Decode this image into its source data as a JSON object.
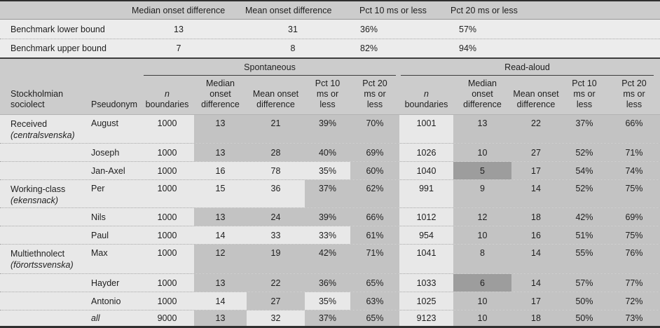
{
  "colors": {
    "header_gray": "#cccccc",
    "benchmark_row": "#ececec",
    "cell_light": "#e8e8e8",
    "cell_medium": "#c3c3c3",
    "cell_dark": "#9d9d9d"
  },
  "benchmark": {
    "headers": [
      "Median onset difference",
      "Mean onset difference",
      "Pct 10 ms or less",
      "Pct 20 ms or less"
    ],
    "rows": [
      {
        "label": "Benchmark lower bound",
        "median": "13",
        "mean": "31",
        "pct10": "36%",
        "pct20": "57%"
      },
      {
        "label": "Benchmark upper bound",
        "median": "7",
        "mean": "8",
        "pct10": "82%",
        "pct20": "94%"
      }
    ]
  },
  "main": {
    "groups": [
      "Spontaneous",
      "Read-aloud"
    ],
    "row_headers": {
      "sociolect_l1": "Stockholmian",
      "sociolect_l2": "sociolect",
      "pseudonym": "Pseudonym"
    },
    "col_headers": {
      "n_line1": "n",
      "n_line2": "boundaries",
      "median": [
        "Median",
        "onset",
        "difference"
      ],
      "mean": [
        "Mean onset",
        "difference"
      ],
      "pct10": [
        "Pct 10",
        "ms or",
        "less"
      ],
      "pct20": [
        "Pct 20",
        "ms or",
        "less"
      ]
    },
    "rows": [
      {
        "sociolect_l1": "Received",
        "sociolect_l2": "(centralsvenska)",
        "pseudonym": "August",
        "tall": true,
        "cells": [
          {
            "v": "1000",
            "s": "light"
          },
          {
            "v": "13",
            "s": "med"
          },
          {
            "v": "21",
            "s": "med"
          },
          {
            "v": "39%",
            "s": "med"
          },
          {
            "v": "70%",
            "s": "med"
          },
          {
            "v": "1001",
            "s": "light"
          },
          {
            "v": "13",
            "s": "med"
          },
          {
            "v": "22",
            "s": "med"
          },
          {
            "v": "37%",
            "s": "med"
          },
          {
            "v": "66%",
            "s": "med"
          }
        ]
      },
      {
        "pseudonym": "Joseph",
        "cells": [
          {
            "v": "1000",
            "s": "light"
          },
          {
            "v": "13",
            "s": "med"
          },
          {
            "v": "28",
            "s": "med"
          },
          {
            "v": "40%",
            "s": "med"
          },
          {
            "v": "69%",
            "s": "med"
          },
          {
            "v": "1026",
            "s": "light"
          },
          {
            "v": "10",
            "s": "med"
          },
          {
            "v": "27",
            "s": "med"
          },
          {
            "v": "52%",
            "s": "med"
          },
          {
            "v": "71%",
            "s": "med"
          }
        ]
      },
      {
        "pseudonym": "Jan-Axel",
        "cells": [
          {
            "v": "1000",
            "s": "light"
          },
          {
            "v": "16",
            "s": "light"
          },
          {
            "v": "78",
            "s": "light"
          },
          {
            "v": "35%",
            "s": "light"
          },
          {
            "v": "60%",
            "s": "med"
          },
          {
            "v": "1040",
            "s": "light"
          },
          {
            "v": "5",
            "s": "dark"
          },
          {
            "v": "17",
            "s": "med"
          },
          {
            "v": "54%",
            "s": "med"
          },
          {
            "v": "74%",
            "s": "med"
          }
        ]
      },
      {
        "sociolect_l1": "Working-class",
        "sociolect_l2": "(ekensnack)",
        "pseudonym": "Per",
        "tall": true,
        "cells": [
          {
            "v": "1000",
            "s": "light"
          },
          {
            "v": "15",
            "s": "light"
          },
          {
            "v": "36",
            "s": "light"
          },
          {
            "v": "37%",
            "s": "med"
          },
          {
            "v": "62%",
            "s": "med"
          },
          {
            "v": "991",
            "s": "light"
          },
          {
            "v": "9",
            "s": "med"
          },
          {
            "v": "14",
            "s": "med"
          },
          {
            "v": "52%",
            "s": "med"
          },
          {
            "v": "75%",
            "s": "med"
          }
        ]
      },
      {
        "pseudonym": "Nils",
        "cells": [
          {
            "v": "1000",
            "s": "light"
          },
          {
            "v": "13",
            "s": "med"
          },
          {
            "v": "24",
            "s": "med"
          },
          {
            "v": "39%",
            "s": "med"
          },
          {
            "v": "66%",
            "s": "med"
          },
          {
            "v": "1012",
            "s": "light"
          },
          {
            "v": "12",
            "s": "med"
          },
          {
            "v": "18",
            "s": "med"
          },
          {
            "v": "42%",
            "s": "med"
          },
          {
            "v": "69%",
            "s": "med"
          }
        ]
      },
      {
        "pseudonym": "Paul",
        "cells": [
          {
            "v": "1000",
            "s": "light"
          },
          {
            "v": "14",
            "s": "light"
          },
          {
            "v": "33",
            "s": "light"
          },
          {
            "v": "33%",
            "s": "light"
          },
          {
            "v": "61%",
            "s": "med"
          },
          {
            "v": "954",
            "s": "light"
          },
          {
            "v": "10",
            "s": "med"
          },
          {
            "v": "16",
            "s": "med"
          },
          {
            "v": "51%",
            "s": "med"
          },
          {
            "v": "75%",
            "s": "med"
          }
        ]
      },
      {
        "sociolect_l1": "Multiethnolect",
        "sociolect_l2": "(förortssvenska)",
        "pseudonym": "Max",
        "tall": true,
        "cells": [
          {
            "v": "1000",
            "s": "light"
          },
          {
            "v": "12",
            "s": "med"
          },
          {
            "v": "19",
            "s": "med"
          },
          {
            "v": "42%",
            "s": "med"
          },
          {
            "v": "71%",
            "s": "med"
          },
          {
            "v": "1041",
            "s": "light"
          },
          {
            "v": "8",
            "s": "med"
          },
          {
            "v": "14",
            "s": "med"
          },
          {
            "v": "55%",
            "s": "med"
          },
          {
            "v": "76%",
            "s": "med"
          }
        ]
      },
      {
        "pseudonym": "Hayder",
        "cells": [
          {
            "v": "1000",
            "s": "light"
          },
          {
            "v": "13",
            "s": "med"
          },
          {
            "v": "22",
            "s": "med"
          },
          {
            "v": "36%",
            "s": "med"
          },
          {
            "v": "65%",
            "s": "med"
          },
          {
            "v": "1033",
            "s": "light"
          },
          {
            "v": "6",
            "s": "dark"
          },
          {
            "v": "14",
            "s": "med"
          },
          {
            "v": "57%",
            "s": "med"
          },
          {
            "v": "77%",
            "s": "med"
          }
        ]
      },
      {
        "pseudonym": "Antonio",
        "cells": [
          {
            "v": "1000",
            "s": "light"
          },
          {
            "v": "14",
            "s": "light"
          },
          {
            "v": "27",
            "s": "med"
          },
          {
            "v": "35%",
            "s": "light"
          },
          {
            "v": "63%",
            "s": "med"
          },
          {
            "v": "1025",
            "s": "light"
          },
          {
            "v": "10",
            "s": "med"
          },
          {
            "v": "17",
            "s": "med"
          },
          {
            "v": "50%",
            "s": "med"
          },
          {
            "v": "72%",
            "s": "med"
          }
        ]
      },
      {
        "pseudonym": "all",
        "italic": true,
        "last": true,
        "cells": [
          {
            "v": "9000",
            "s": "light"
          },
          {
            "v": "13",
            "s": "med"
          },
          {
            "v": "32",
            "s": "light"
          },
          {
            "v": "37%",
            "s": "med"
          },
          {
            "v": "65%",
            "s": "med"
          },
          {
            "v": "9123",
            "s": "light"
          },
          {
            "v": "10",
            "s": "med"
          },
          {
            "v": "18",
            "s": "med"
          },
          {
            "v": "50%",
            "s": "med"
          },
          {
            "v": "73%",
            "s": "med"
          }
        ]
      }
    ]
  }
}
